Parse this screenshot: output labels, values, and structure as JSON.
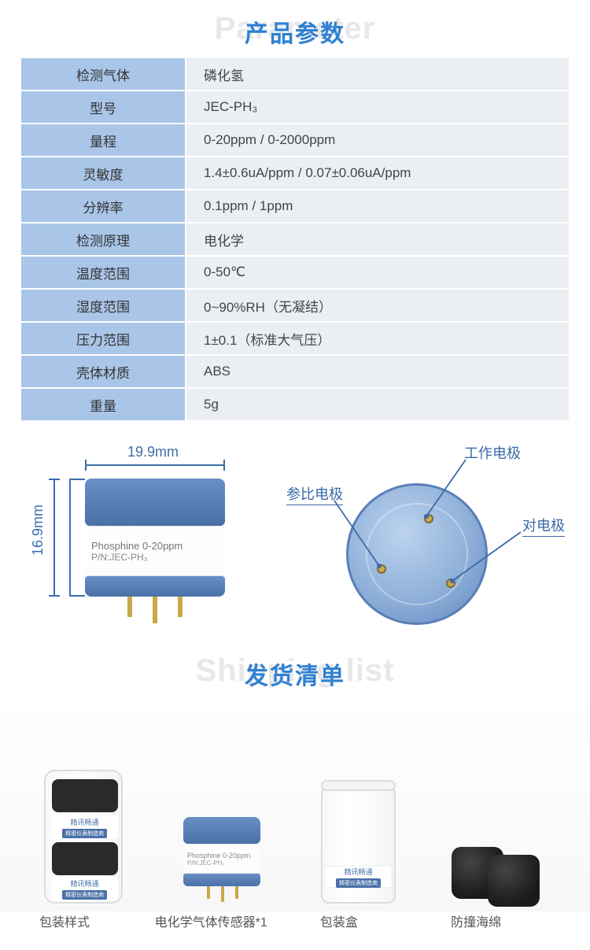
{
  "colors": {
    "title_fg": "#2f80d2",
    "title_bg_text": "#e6e6e6",
    "table_label_bg": "#a9c5e8",
    "table_value_bg": "#ebeff3",
    "table_border": "#ffffff",
    "diagram_accent": "#3c6eab",
    "sensor_blue_top": "#6a8fc7",
    "sensor_blue_bottom": "#4a70a8",
    "pin_gold": "#c8a94a",
    "foam_black": "#222222"
  },
  "section1": {
    "title_cn": "产品参数",
    "title_en": "Parameter"
  },
  "specs": {
    "rows": [
      {
        "label": "检测气体",
        "value": "磷化氢"
      },
      {
        "label": "型号",
        "value": "JEC-PH₃"
      },
      {
        "label": "量程",
        "value": "0-20ppm / 0-2000ppm"
      },
      {
        "label": "灵敏度",
        "value": "1.4±0.6uA/ppm / 0.07±0.06uA/ppm"
      },
      {
        "label": "分辨率",
        "value": "0.1ppm / 1ppm"
      },
      {
        "label": "检测原理",
        "value": "电化学"
      },
      {
        "label": "温度范围",
        "value": "0-50℃"
      },
      {
        "label": "湿度范围",
        "value": "0~90%RH（无凝结）"
      },
      {
        "label": "压力范围",
        "value": "1±0.1（标准大气压）"
      },
      {
        "label": "壳体材质",
        "value": "ABS"
      },
      {
        "label": "重量",
        "value": "5g"
      }
    ]
  },
  "diagram": {
    "width_label": "19.9mm",
    "height_label": "16.9mm",
    "sensor_text_line1": "Phosphine 0-20ppm",
    "sensor_text_line2": "P/N:JEC-PH₃",
    "callouts": {
      "working": "工作电极",
      "reference": "参比电极",
      "counter": "对电极"
    }
  },
  "section2": {
    "title_cn": "发货清单",
    "title_en": "Shipping list"
  },
  "shipping": {
    "brand_cn": "精讯畅通",
    "brand_sub": "精密仪表制造商",
    "items": [
      {
        "caption": "包装样式"
      },
      {
        "caption": "电化学气体传感器*1"
      },
      {
        "caption": "包装盒"
      },
      {
        "caption": "防撞海绵"
      }
    ]
  }
}
